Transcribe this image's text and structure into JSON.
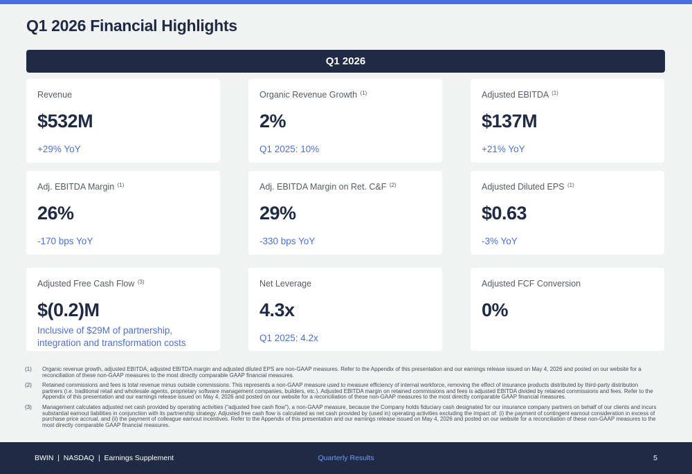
{
  "title": "Q1 2026 Financial Highlights",
  "period_header": "Q1 2026",
  "cards": [
    {
      "label": "Revenue",
      "sup": "",
      "value": "$532M",
      "sub": "+29% YoY"
    },
    {
      "label": "Organic Revenue Growth",
      "sup": "(1)",
      "value": "2%",
      "sub": "Q1 2025: 10%"
    },
    {
      "label": "Adjusted EBITDA",
      "sup": "(1)",
      "value": "$137M",
      "sub": "+21% YoY"
    },
    {
      "label": "Adj. EBITDA Margin",
      "sup": "(1)",
      "value": "26%",
      "sub": "-170 bps YoY"
    },
    {
      "label": "Adj. EBITDA Margin on Ret. C&F",
      "sup": "(2)",
      "value": "29%",
      "sub": "-330 bps YoY"
    },
    {
      "label": "Adjusted Diluted EPS",
      "sup": "(1)",
      "value": "$0.63",
      "sub": "-3% YoY"
    },
    {
      "label": "Adjusted Free Cash Flow",
      "sup": "(3)",
      "value": "$(0.2)M",
      "sub": "Inclusive of $29M of partnership, integration and transformation costs"
    },
    {
      "label": "Net Leverage",
      "sup": "",
      "value": "4.3x",
      "sub": "Q1 2025: 4.2x"
    },
    {
      "label": "Adjusted FCF Conversion",
      "sup": "",
      "value": "0%",
      "sub": ""
    }
  ],
  "footnotes": [
    {
      "num": "(1)",
      "text": "Organic revenue growth, adjusted EBITDA, adjusted EBITDA margin and adjusted diluted EPS are non-GAAP measures. Refer to the Appendix of this presentation and our earnings release issued on May 4, 2026 and posted on our website for a reconciliation of these non-GAAP measures to the most directly comparable GAAP financial measures."
    },
    {
      "num": "(2)",
      "text": "Retained commissions and fees is total revenue minus outside commissions. This represents a non-GAAP measure used to measure efficiency of internal workforce, removing the effect of insurance products distributed by third-party distribution partners (i.e. traditional retail and wholesale agents, proprietary software management companies, builders, etc.). Adjusted EBITDA margin on retained commissions and fees is adjusted EBITDA divided by retained commissions and fees. Refer to the Appendix of this presentation and our earnings release issued on May 4, 2026 and posted on our website for a reconciliation of these non-GAAP measures to the most directly comparable GAAP financial measures."
    },
    {
      "num": "(3)",
      "text": "Management calculates adjusted net cash provided by operating activities (“adjusted free cash flow”), a non-GAAP measure, because the Company holds fiduciary cash designated for our insurance company partners on behalf of our clients and incurs substantial earnout liabilities in conjunction with its partnership strategy. Adjusted free cash flow is calculated as net cash provided by (used in) operating activities excluding the impact of: (i) the payment of contingent earnout consideration in excess of purchase price accrual, and (ii) the payment of colleague earnout incentives. Refer to the Appendix of this presentation and our earnings release issued on May 4, 2026 and posted on our website for a reconciliation of these non-GAAP measures to the most directly comparable GAAP financial measures."
    }
  ],
  "footer": {
    "left": "BWIN  |  NASDAQ  |  Earnings Supplement",
    "center": "Quarterly Results",
    "page": "5"
  },
  "colors": {
    "navy": "#1f2a44",
    "accent": "#4a6ee0",
    "background": "#f1f2f2"
  }
}
